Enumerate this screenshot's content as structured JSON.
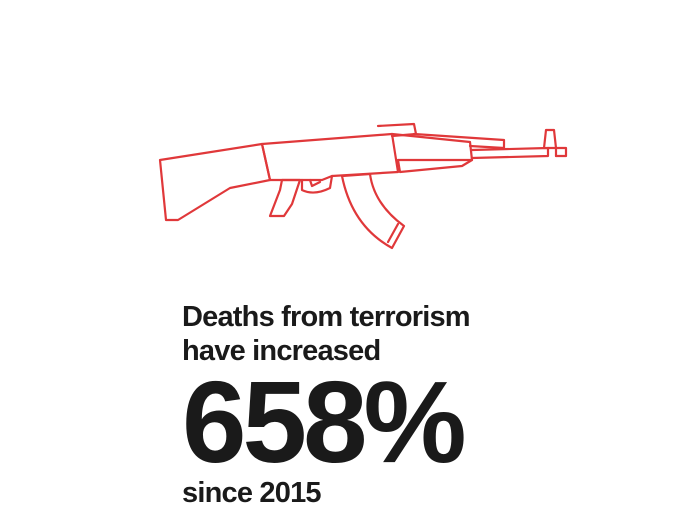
{
  "icon": {
    "name": "rifle-icon",
    "color": "#e0383a"
  },
  "stat": {
    "line1": "Deaths from terrorism",
    "line2": "have increased",
    "value": "658%",
    "since": "since 2015"
  }
}
